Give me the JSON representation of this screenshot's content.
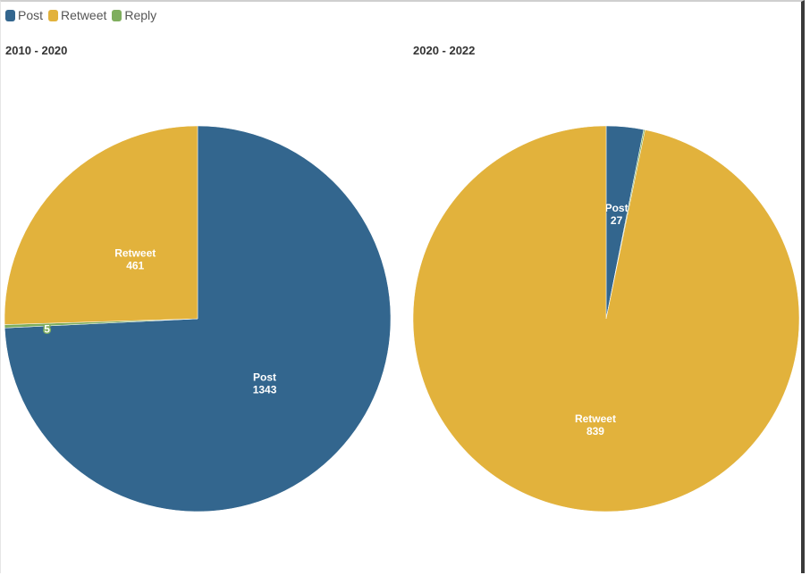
{
  "colors": {
    "Post": "#33668e",
    "Retweet": "#e2b23c",
    "Reply": "#7fae5e"
  },
  "legend": [
    {
      "label": "Post",
      "color": "#33668e"
    },
    {
      "label": "Retweet",
      "color": "#e2b23c"
    },
    {
      "label": "Reply",
      "color": "#7fae5e"
    }
  ],
  "chart_data": [
    {
      "type": "pie",
      "title": "2010 - 2020",
      "categories": [
        "Post",
        "Reply",
        "Retweet"
      ],
      "values": [
        1343,
        5,
        461
      ]
    },
    {
      "type": "pie",
      "title": "2020 - 2022",
      "categories": [
        "Post",
        "Reply",
        "Retweet"
      ],
      "values": [
        27,
        1,
        839
      ]
    }
  ]
}
